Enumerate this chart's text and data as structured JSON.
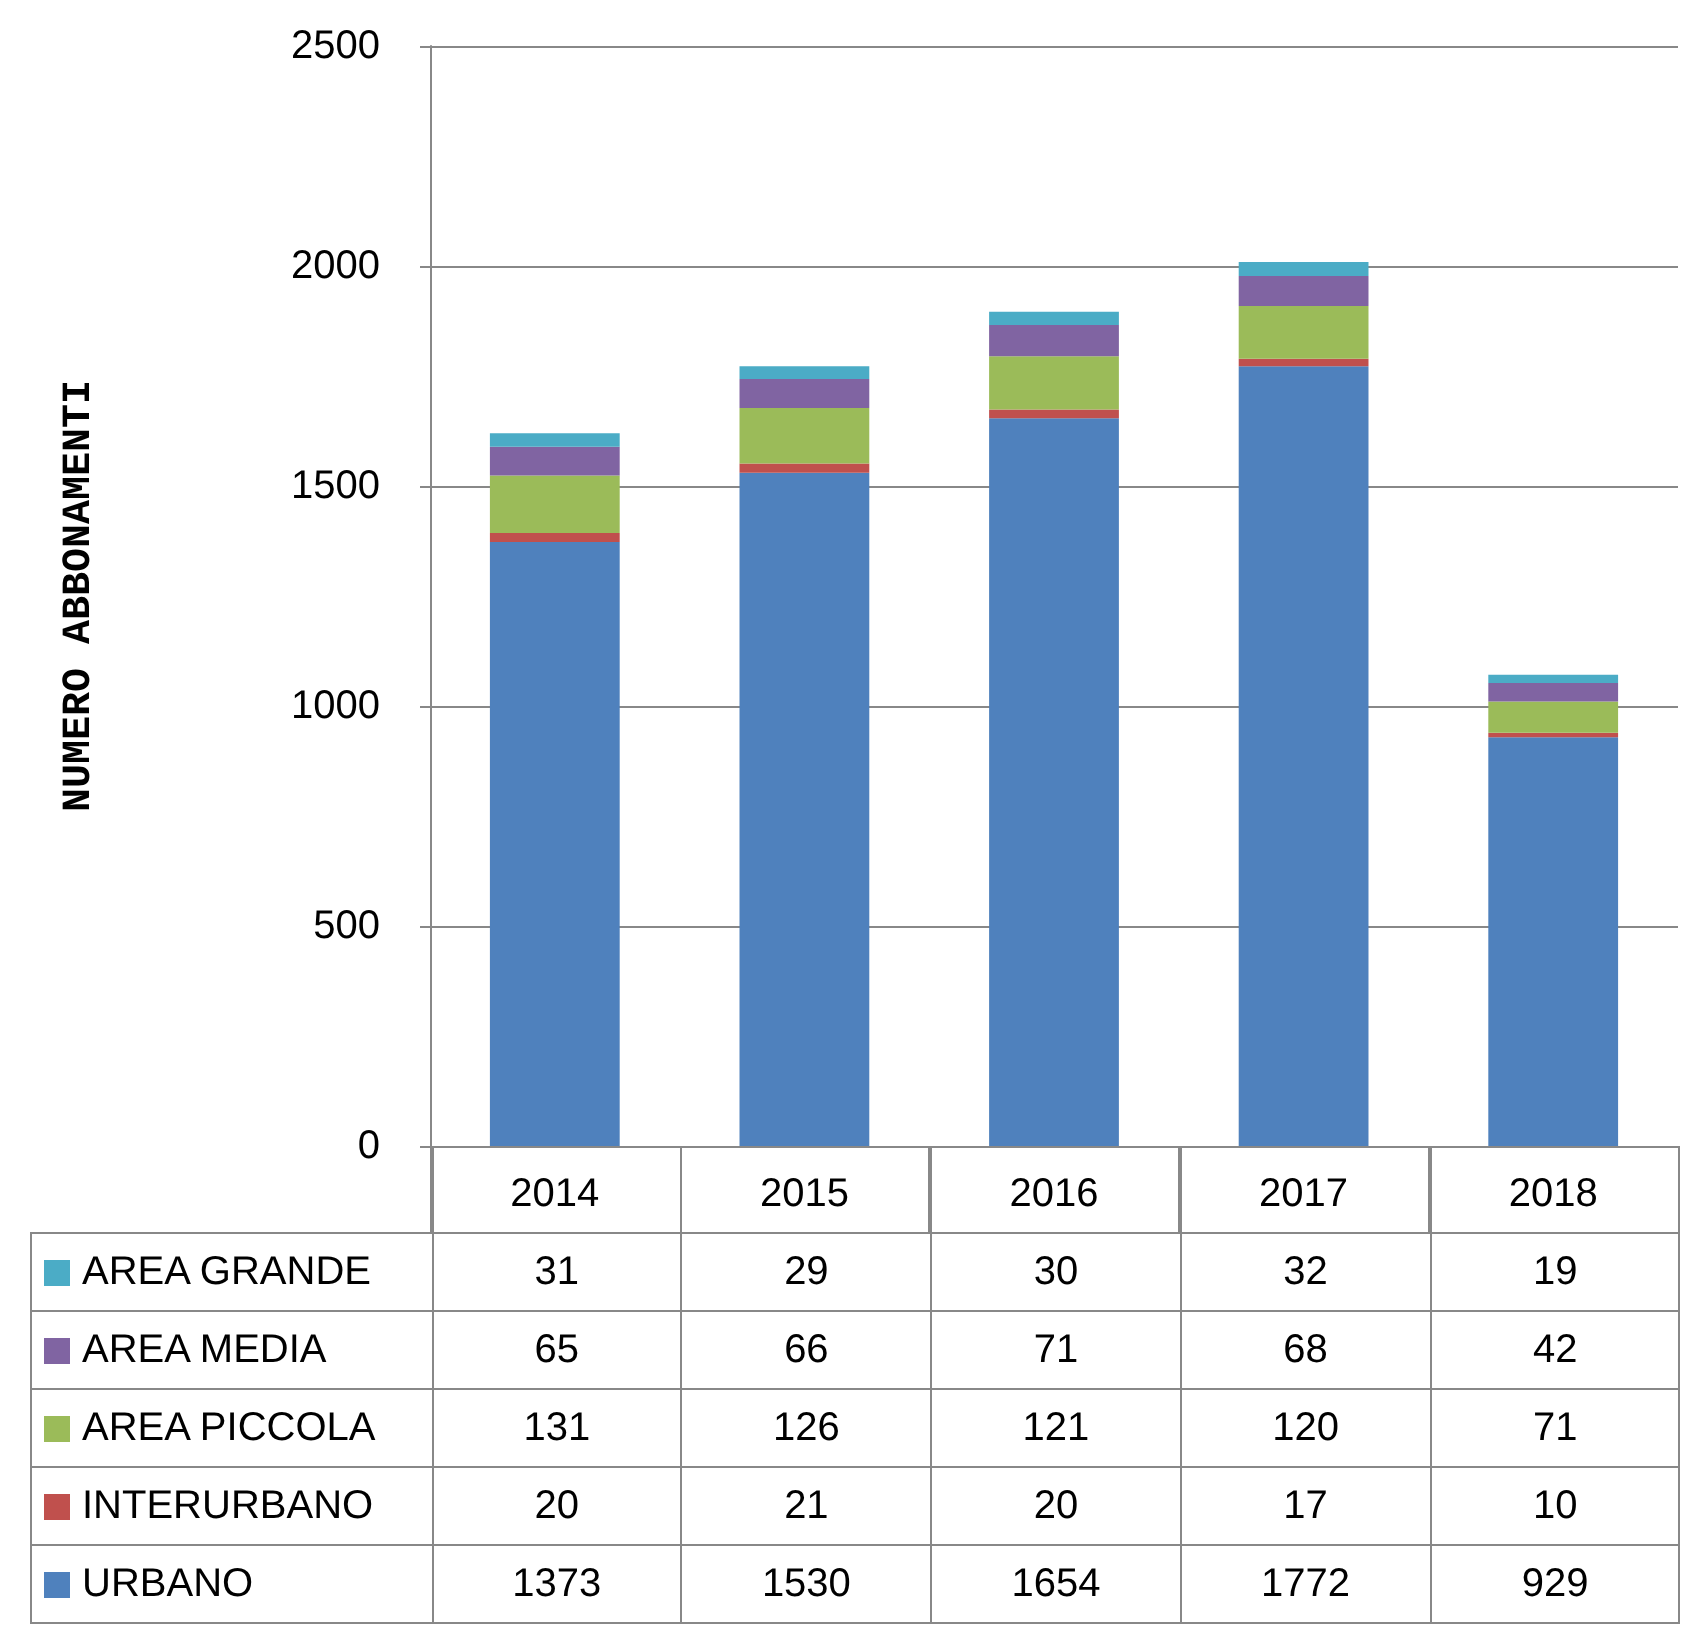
{
  "chart_data": {
    "type": "bar",
    "stacked": true,
    "ylabel": "NUMERO ABBONAMENTI",
    "categories": [
      "2014",
      "2015",
      "2016",
      "2017",
      "2018"
    ],
    "series": [
      {
        "name": "URBANO",
        "color": "#4f81bd",
        "values": [
          1373,
          1530,
          1654,
          1772,
          929
        ]
      },
      {
        "name": "INTERURBANO",
        "color": "#c0504d",
        "values": [
          20,
          21,
          20,
          17,
          10
        ]
      },
      {
        "name": "AREA PICCOLA",
        "color": "#9bbb59",
        "values": [
          131,
          126,
          121,
          120,
          71
        ]
      },
      {
        "name": "AREA MEDIA",
        "color": "#8064a2",
        "values": [
          65,
          66,
          71,
          68,
          42
        ]
      },
      {
        "name": "AREA GRANDE",
        "color": "#4bacc6",
        "values": [
          31,
          29,
          30,
          32,
          19
        ]
      }
    ],
    "ylim": [
      0,
      2500
    ],
    "yticks": [
      0,
      500,
      1000,
      1500,
      2000,
      2500
    ],
    "grid": "y",
    "legend": "bottom",
    "data_labels": true
  }
}
